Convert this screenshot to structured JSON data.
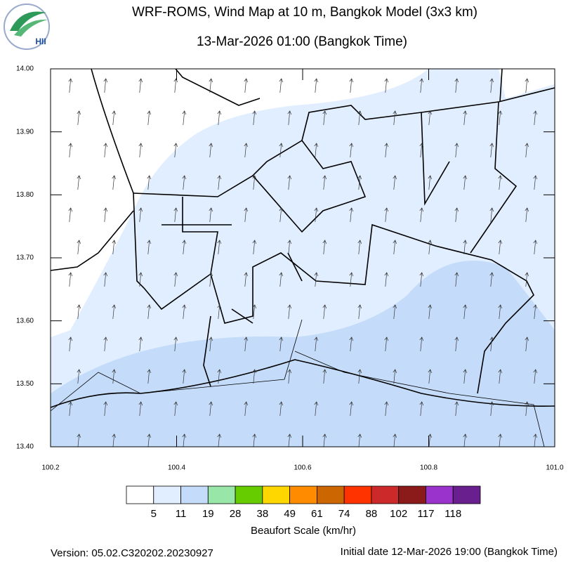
{
  "logo": {
    "text": "HII"
  },
  "title": "WRF-ROMS, Wind Map at 10 m, Bangkok Model (3x3 km)",
  "subtitle": "13-Mar-2026 01:00 (Bangkok Time)",
  "map": {
    "xlim": [
      100.2,
      101.0
    ],
    "ylim": [
      13.4,
      14.0
    ],
    "xticks": [
      100.2,
      100.4,
      100.6,
      100.8,
      {
        "value": 101.0,
        "label": "101.0"
      }
    ],
    "yticks": [
      {
        "value": 13.4,
        "label": "13.40"
      },
      {
        "value": 13.5,
        "label": "13.50"
      },
      {
        "value": 13.6,
        "label": "13.60"
      },
      {
        "value": 13.7,
        "label": "13.70"
      },
      {
        "value": 13.8,
        "label": "13.80"
      },
      {
        "value": 13.9,
        "label": "13.90"
      },
      {
        "value": 14.0,
        "label": "14.00"
      }
    ]
  },
  "colorbar": {
    "colors": [
      "#ffffff",
      "#e1eeff",
      "#c4dcfa",
      "#98e6a8",
      "#66cc00",
      "#ffd700",
      "#ff8c00",
      "#cc6600",
      "#ff3300",
      "#cc2a2a",
      "#8b1a1a",
      "#9933cc",
      "#6a1f8f"
    ],
    "labels": [
      5,
      11,
      19,
      28,
      38,
      49,
      61,
      74,
      88,
      102,
      117,
      118
    ],
    "title": "Beaufort Scale (km/hr)"
  },
  "footer": {
    "version": "Version: 05.02.C320202.20230927",
    "initial": "Initial date 12-Mar-2026 19:00 (Bangkok Time)"
  }
}
